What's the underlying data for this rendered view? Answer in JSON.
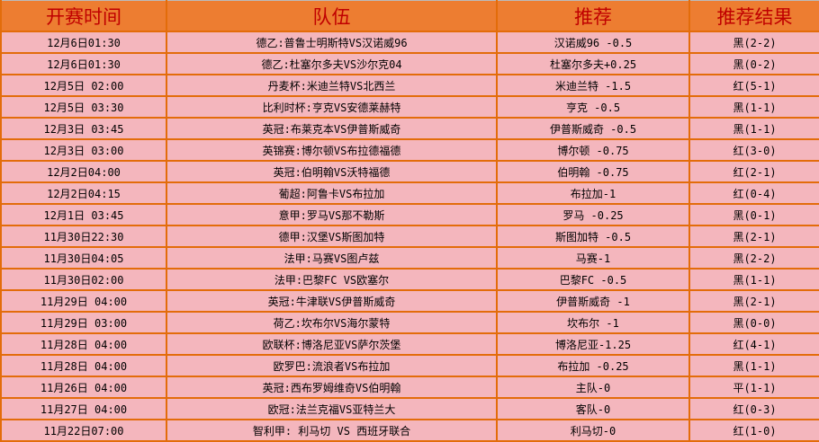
{
  "headers": [
    "开赛时间",
    "队伍",
    "推荐",
    "推荐结果"
  ],
  "colors": {
    "header_bg": "#ed7d31",
    "header_text": "#c00000",
    "row_bg": "#f4b6bd",
    "border": "#e36c0a"
  },
  "rows": [
    {
      "time": "12月6日01:30",
      "teams": "德乙:普鲁士明斯特VS汉诺威96",
      "pick": "汉诺威96 -0.5",
      "result": "黑(2-2)"
    },
    {
      "time": "12月6日01:30",
      "teams": "德乙:杜塞尔多夫VS沙尔克04",
      "pick": "杜塞尔多夫+0.25",
      "result": "黑(0-2)"
    },
    {
      "time": "12月5日 02:00",
      "teams": "丹麦杯:米迪兰特VS北西兰",
      "pick": "米迪兰特 -1.5",
      "result": "红(5-1)"
    },
    {
      "time": "12月5日 03:30",
      "teams": "比利时杯:亨克VS安德莱赫特",
      "pick": "亨克 -0.5",
      "result": "黑(1-1)"
    },
    {
      "time": "12月3日 03:45",
      "teams": "英冠:布莱克本VS伊普斯威奇",
      "pick": "伊普斯威奇 -0.5",
      "result": "黑(1-1)"
    },
    {
      "time": "12月3日 03:00",
      "teams": "英锦赛:博尔顿VS布拉德福德",
      "pick": "博尔顿 -0.75",
      "result": "红(3-0)"
    },
    {
      "time": "12月2日04:00",
      "teams": "英冠:伯明翰VS沃特福德",
      "pick": "伯明翰 -0.75",
      "result": "红(2-1)"
    },
    {
      "time": "12月2日04:15",
      "teams": "葡超:阿鲁卡VS布拉加",
      "pick": "布拉加-1",
      "result": "红(0-4)"
    },
    {
      "time": "12月1日 03:45",
      "teams": "意甲:罗马VS那不勒斯",
      "pick": "罗马 -0.25",
      "result": "黑(0-1)"
    },
    {
      "time": "11月30日22:30",
      "teams": "德甲:汉堡VS斯图加特",
      "pick": "斯图加特 -0.5",
      "result": "黑(2-1)"
    },
    {
      "time": "11月30日04:05",
      "teams": "法甲:马赛VS图卢兹",
      "pick": "马赛-1",
      "result": "黑(2-2)"
    },
    {
      "time": "11月30日02:00",
      "teams": "法甲:巴黎FC VS欧塞尔",
      "pick": "巴黎FC -0.5",
      "result": "黑(1-1)"
    },
    {
      "time": "11月29日 04:00",
      "teams": "英冠:牛津联VS伊普斯威奇",
      "pick": "伊普斯威奇 -1",
      "result": "黑(2-1)"
    },
    {
      "time": "11月29日 03:00",
      "teams": "荷乙:坎布尔VS海尔蒙特",
      "pick": "坎布尔 -1",
      "result": "黑(0-0)"
    },
    {
      "time": "11月28日 04:00",
      "teams": "欧联杯:博洛尼亚VS萨尔茨堡",
      "pick": "博洛尼亚-1.25",
      "result": "红(4-1)"
    },
    {
      "time": "11月28日 04:00",
      "teams": "欧罗巴:流浪者VS布拉加",
      "pick": "布拉加 -0.25",
      "result": "黑(1-1)"
    },
    {
      "time": "11月26日 04:00",
      "teams": "英冠:西布罗姆维奇VS伯明翰",
      "pick": "主队-0",
      "result": "平(1-1)"
    },
    {
      "time": "11月27日 04:00",
      "teams": "欧冠:法兰克福VS亚特兰大",
      "pick": "客队-0",
      "result": "红(0-3)"
    },
    {
      "time": "11月22日07:00",
      "teams": "智利甲: 利马切 VS 西班牙联合",
      "pick": "利马切-0",
      "result": "红(1-0)"
    }
  ]
}
